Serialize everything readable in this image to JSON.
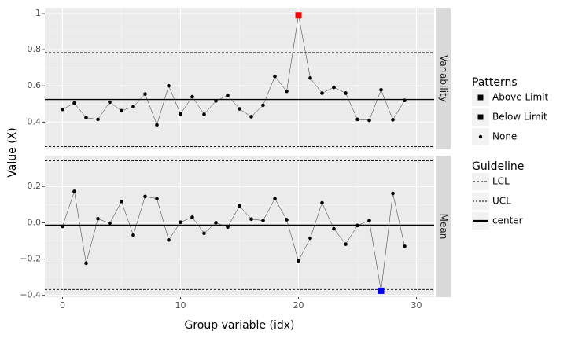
{
  "chart_data": {
    "type": "line",
    "xlabel": "Group variable (idx)",
    "ylabel": "Value (X)",
    "x_ticks": [
      0,
      10,
      20,
      30
    ],
    "xlim": [
      -1.5,
      31.5
    ],
    "grid": true,
    "facets": [
      {
        "name": "Variability",
        "ylim": [
          0.25,
          1.03
        ],
        "y_ticks": [
          0.4,
          0.6,
          0.8,
          1.0
        ],
        "y_tick_labels": [
          "0.4",
          "0.6",
          "0.8",
          "1"
        ],
        "x": [
          0,
          1,
          2,
          3,
          4,
          5,
          6,
          7,
          8,
          9,
          10,
          11,
          12,
          13,
          14,
          15,
          16,
          17,
          18,
          19,
          20,
          21,
          22,
          23,
          24,
          25,
          26,
          27,
          28,
          29
        ],
        "values": [
          0.47,
          0.505,
          0.425,
          0.415,
          0.51,
          0.463,
          0.485,
          0.555,
          0.385,
          0.6,
          0.445,
          0.54,
          0.443,
          0.517,
          0.547,
          0.473,
          0.43,
          0.493,
          0.652,
          0.57,
          0.99,
          0.643,
          0.56,
          0.592,
          0.56,
          0.415,
          0.41,
          0.578,
          0.413,
          0.52
        ],
        "center": 0.525,
        "ucl": 0.783,
        "lcl": 0.265,
        "patterns": [
          {
            "x": 20,
            "y": 0.99,
            "type": "Above Limit",
            "color": "#ff0000"
          }
        ]
      },
      {
        "name": "Mean",
        "ylim": [
          -0.41,
          0.37
        ],
        "y_ticks": [
          -0.4,
          -0.2,
          0.0,
          0.2
        ],
        "y_tick_labels": [
          "−0.4",
          "−0.2",
          "0.0",
          "0.2"
        ],
        "x": [
          0,
          1,
          2,
          3,
          4,
          5,
          6,
          7,
          8,
          9,
          10,
          11,
          12,
          13,
          14,
          15,
          16,
          17,
          18,
          19,
          20,
          21,
          22,
          23,
          24,
          25,
          26,
          27,
          28,
          29
        ],
        "values": [
          -0.02,
          0.173,
          -0.223,
          0.022,
          -0.003,
          0.117,
          -0.068,
          0.145,
          0.133,
          -0.095,
          0.003,
          0.03,
          -0.058,
          0.0,
          -0.023,
          0.093,
          0.02,
          0.012,
          0.133,
          0.017,
          -0.21,
          -0.085,
          0.11,
          -0.033,
          -0.118,
          -0.015,
          0.012,
          -0.375,
          0.162,
          -0.13
        ],
        "center": -0.013,
        "ucl": 0.342,
        "lcl": -0.368,
        "patterns": [
          {
            "x": 27,
            "y": -0.375,
            "type": "Below Limit",
            "color": "#0000ff"
          }
        ]
      }
    ],
    "legend": {
      "placement": "right",
      "patterns": {
        "title": "Patterns",
        "entries": [
          "Above Limit",
          "Below Limit",
          "None"
        ]
      },
      "guideline": {
        "title": "Guideline",
        "entries": [
          "LCL",
          "UCL",
          "center"
        ]
      }
    }
  }
}
